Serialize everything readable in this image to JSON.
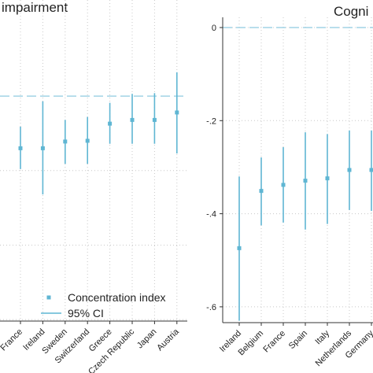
{
  "chart_data": [
    {
      "type": "errorpoint",
      "title": "impairment",
      "categories": [
        "France",
        "Ireland",
        "Sweden",
        "Switzerland",
        "Greece",
        "Czech Republic",
        "Japan",
        "Austria"
      ],
      "series": [
        {
          "name": "Concentration index",
          "color": "#5fb6d3",
          "values": [
            -0.07,
            -0.07,
            -0.061,
            -0.06,
            -0.037,
            -0.032,
            -0.032,
            -0.022
          ]
        },
        {
          "name": "95% CI",
          "color": "#5fb6d3",
          "lower": [
            -0.098,
            -0.132,
            -0.091,
            -0.091,
            -0.064,
            -0.064,
            -0.064,
            -0.077
          ],
          "upper": [
            -0.041,
            -0.007,
            -0.032,
            -0.028,
            -0.009,
            0.003,
            0.004,
            0.032
          ]
        }
      ],
      "ylim": [
        -0.302,
        0.129
      ],
      "ygrid": [
        -0.1,
        -0.2,
        -0.3
      ],
      "hline": 0,
      "grid": true,
      "legend": "lower right"
    },
    {
      "type": "errorpoint",
      "title": "Cogni",
      "categories": [
        "Ireland",
        "Belgium",
        "France",
        "Spain",
        "Italy",
        "Netherlands",
        "Germany"
      ],
      "series": [
        {
          "color": "#5fb6d3",
          "values": [
            -0.474,
            -0.351,
            -0.338,
            -0.329,
            -0.324,
            -0.306,
            -0.306
          ]
        },
        {
          "color": "#5fb6d3",
          "lower": [
            -0.63,
            -0.425,
            -0.419,
            -0.434,
            -0.422,
            -0.392,
            -0.394
          ],
          "upper": [
            -0.32,
            -0.279,
            -0.257,
            -0.225,
            -0.229,
            -0.221,
            -0.221
          ]
        }
      ],
      "ylim": [
        -0.634,
        0.022
      ],
      "yticks": [
        0,
        {
          "value": -0.2,
          "label": "-.2"
        },
        {
          "value": -0.4,
          "label": "-.4"
        },
        {
          "value": -0.6,
          "label": "-.6"
        }
      ],
      "hline": 0,
      "grid": true,
      "legend": false
    }
  ]
}
